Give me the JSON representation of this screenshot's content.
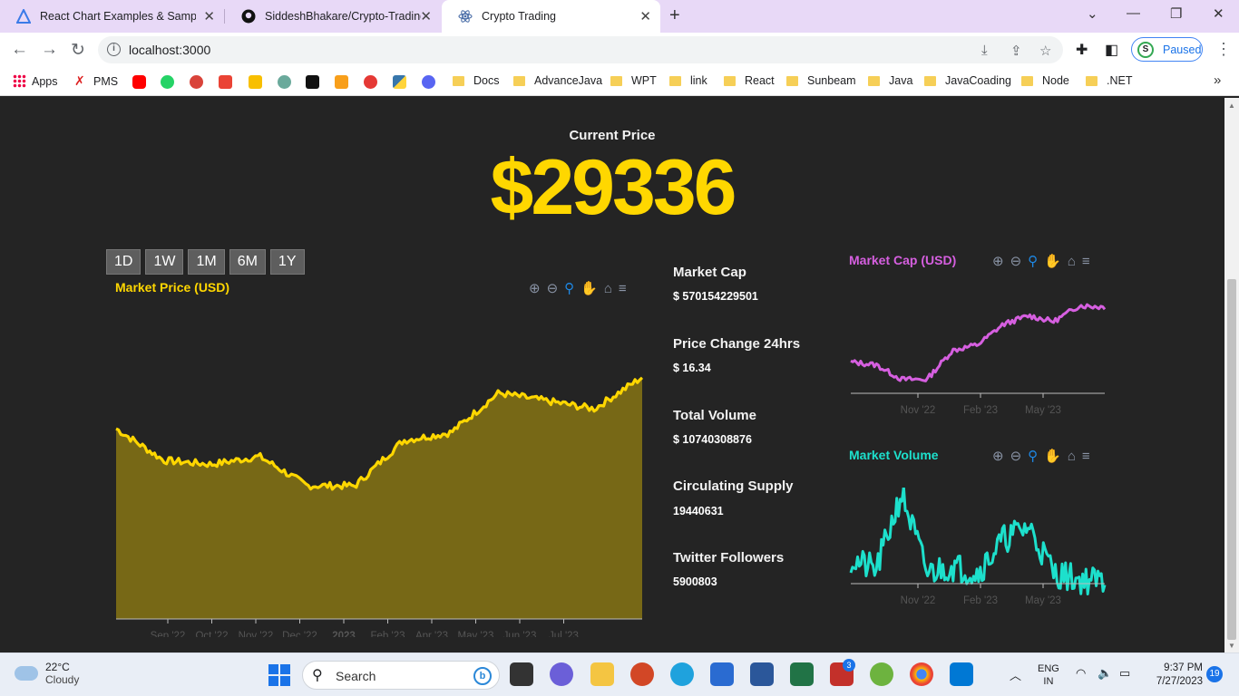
{
  "browser": {
    "tabs": [
      {
        "title": "React Chart Examples & Samples",
        "active": false,
        "icon": "apexcharts-icon"
      },
      {
        "title": "SiddeshBhakare/Crypto-Trading-",
        "active": false,
        "icon": "github-icon"
      },
      {
        "title": "Crypto Trading",
        "active": true,
        "icon": "react-icon"
      }
    ],
    "url": "localhost:3000",
    "profile_status": "Paused",
    "profile_initial": "S",
    "bookmarks": [
      "Apps",
      "PMS",
      "Docs",
      "AdvanceJava",
      "WPT",
      "link",
      "React",
      "Sunbeam",
      "Java",
      "JavaCoading",
      "Node",
      ".NET"
    ]
  },
  "page": {
    "current_price_label": "Current Price",
    "current_price": "$29336",
    "range_buttons": [
      "1D",
      "1W",
      "1M",
      "6M",
      "1Y"
    ],
    "stats": [
      {
        "label": "Market Cap",
        "value": "$ 570154229501"
      },
      {
        "label": "Price Change 24hrs",
        "value": "$ 16.34"
      },
      {
        "label": "Total Volume",
        "value": "$ 10740308876"
      },
      {
        "label": "Circulating Supply",
        "value": "19440631"
      },
      {
        "label": "Twitter Followers",
        "value": "5900803"
      }
    ],
    "colors": {
      "price": "#ffd700",
      "market_cap": "#d65fe0",
      "volume": "#1de0cc",
      "background": "#242424"
    }
  },
  "chart_data": [
    {
      "type": "area",
      "title": "Market Price (USD)",
      "x_ticks": [
        "Sep '22",
        "Oct '22",
        "Nov '22",
        "Dec '22",
        "2023",
        "Feb '23",
        "Apr '23",
        "May '23",
        "Jun '23",
        "Jul '23"
      ],
      "x": [
        "2022-08",
        "2022-09",
        "2022-10",
        "2022-11",
        "2022-12",
        "2023-01",
        "2023-02",
        "2023-03",
        "2023-04",
        "2023-05",
        "2023-06",
        "2023-07"
      ],
      "values": [
        24000,
        20000,
        19500,
        20500,
        16800,
        16800,
        22500,
        23500,
        28500,
        27500,
        26500,
        30500
      ],
      "ylim": [
        0,
        32000
      ]
    },
    {
      "type": "line",
      "title": "Market Cap (USD)",
      "x_ticks": [
        "Nov '22",
        "Feb '23",
        "May '23"
      ],
      "x": [
        "2022-09",
        "2022-10",
        "2022-11",
        "2022-12",
        "2023-01",
        "2023-02",
        "2023-03",
        "2023-04",
        "2023-05",
        "2023-06",
        "2023-07"
      ],
      "values": [
        380,
        370,
        320,
        320,
        420,
        440,
        510,
        540,
        520,
        575,
        570
      ]
    },
    {
      "type": "line",
      "title": "Market Volume",
      "x_ticks": [
        "Nov '22",
        "Feb '23",
        "May '23"
      ],
      "x": [
        "2022-09",
        "2022-10",
        "2022-11",
        "2022-12",
        "2023-01",
        "2023-02",
        "2023-03",
        "2023-04",
        "2023-05",
        "2023-06",
        "2023-07"
      ],
      "values": [
        30,
        22,
        80,
        20,
        25,
        20,
        45,
        55,
        20,
        15,
        14
      ]
    }
  ],
  "taskbar": {
    "weather_temp": "22°C",
    "weather_text": "Cloudy",
    "search_label": "Search",
    "lang_top": "ENG",
    "lang_bottom": "IN",
    "time": "9:37 PM",
    "date": "7/27/2023",
    "notif_count": "19",
    "badge_count": "3"
  }
}
